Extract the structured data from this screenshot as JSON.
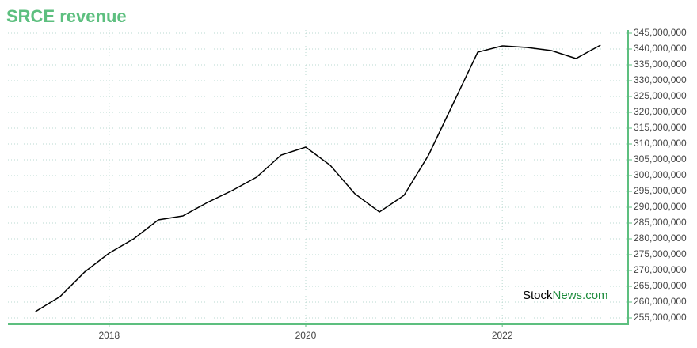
{
  "chart_data": {
    "type": "line",
    "title": "SRCE revenue",
    "x": [
      2017.25,
      2017.5,
      2017.75,
      2018,
      2018.25,
      2018.5,
      2018.75,
      2019,
      2019.25,
      2019.5,
      2019.75,
      2020,
      2020.25,
      2020.5,
      2020.75,
      2021,
      2021.25,
      2021.5,
      2021.75,
      2022,
      2022.25,
      2022.5,
      2022.75,
      2023
    ],
    "series": [
      {
        "color": "#000000",
        "values": [
          257000000,
          261750000,
          269500000,
          275500000,
          280000000,
          286000000,
          287250000,
          291500000,
          295250000,
          299500000,
          306500000,
          309000000,
          303250000,
          294250000,
          288500000,
          293750000,
          306500000,
          322750000,
          339000000,
          341000000,
          340500000,
          339500000,
          337000000,
          341250000
        ]
      }
    ],
    "xlim": [
      2016.97,
      2023.28
    ],
    "xticks": [
      2018,
      2020,
      2022
    ],
    "ylim": [
      253000000,
      346000000
    ],
    "yticks": [
      {
        "value": 255000000,
        "label": "255,000,000"
      },
      {
        "value": 260000000,
        "label": "260,000,000"
      },
      {
        "value": 265000000,
        "label": "265,000,000"
      },
      {
        "value": 270000000,
        "label": "270,000,000"
      },
      {
        "value": 275000000,
        "label": "275,000,000"
      },
      {
        "value": 280000000,
        "label": "280,000,000"
      },
      {
        "value": 285000000,
        "label": "285,000,000"
      },
      {
        "value": 290000000,
        "label": "290,000,000"
      },
      {
        "value": 295000000,
        "label": "295,000,000"
      },
      {
        "value": 300000000,
        "label": "300,000,000"
      },
      {
        "value": 305000000,
        "label": "305,000,000"
      },
      {
        "value": 310000000,
        "label": "310,000,000"
      },
      {
        "value": 315000000,
        "label": "315,000,000"
      },
      {
        "value": 320000000,
        "label": "320,000,000"
      },
      {
        "value": 325000000,
        "label": "325,000,000"
      },
      {
        "value": 330000000,
        "label": "330,000,000"
      },
      {
        "value": 335000000,
        "label": "335,000,000"
      },
      {
        "value": 340000000,
        "label": "340,000,000"
      },
      {
        "value": 345000000,
        "label": "345,000,000"
      }
    ],
    "grid": true,
    "axis_color": "#5dbf7f",
    "watermark": [
      "Stock",
      "News.com"
    ]
  }
}
